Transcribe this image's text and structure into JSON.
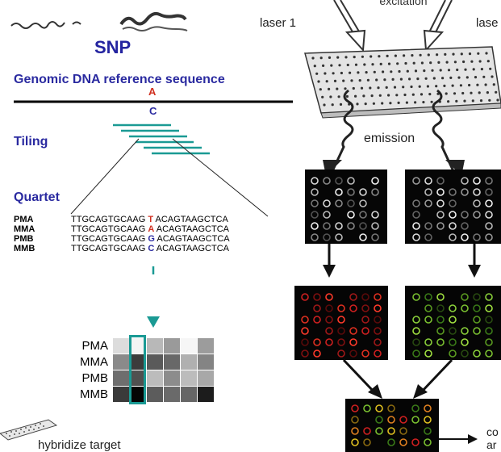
{
  "left": {
    "title": "SNP",
    "reference_label": "Genomic DNA reference sequence",
    "allele_top": "A",
    "allele_bottom": "C",
    "tiling_label": "Tiling",
    "quartet_label": "Quartet",
    "probes": [
      {
        "name": "PMA",
        "prefix": "TTGCAGTGCAAG ",
        "base": "T",
        "suffix": " ACAGTAAGCTCA",
        "base_color": "#d03020"
      },
      {
        "name": "MMA",
        "prefix": "TTGCAGTGCAAG ",
        "base": "A",
        "suffix": " ACAGTAAGCTCA",
        "base_color": "#d03020"
      },
      {
        "name": "PMB",
        "prefix": "TTGCAGTGCAAG ",
        "base": "G",
        "suffix": " ACAGTAAGCTCA",
        "base_color": "#2a2aa0"
      },
      {
        "name": "MMB",
        "prefix": "TTGCAGTGCAAG ",
        "base": "C",
        "suffix": " ACAGTAAGCTCA",
        "base_color": "#2a2aa0"
      }
    ],
    "heatmap_rows": [
      {
        "label": "PMA",
        "cells": [
          "#dcdcdc",
          "#f4f4f4",
          "#b8b8b8",
          "#9a9a9a",
          "#f6f6f6",
          "#9c9c9c"
        ]
      },
      {
        "label": "MMA",
        "cells": [
          "#8a8a8a",
          "#3c3c3c",
          "#5a5a5a",
          "#686868",
          "#b0b0b0",
          "#848484"
        ]
      },
      {
        "label": "PMB",
        "cells": [
          "#6e6e6e",
          "#505050",
          "#bcbcbc",
          "#8c8c8c",
          "#bcbcbc",
          "#a8a8a8"
        ]
      },
      {
        "label": "MMB",
        "cells": [
          "#3a3a3a",
          "#050505",
          "#5c5c5c",
          "#6a6a6a",
          "#666666",
          "#1c1c1c"
        ]
      }
    ],
    "bottom_caption": "hybridize target"
  },
  "right": {
    "laser1": "laser 1",
    "laser2": "lase",
    "excitation": "excitation",
    "emission": "emission",
    "combine_partial_1": "co",
    "combine_partial_2": "ar"
  },
  "colors": {
    "title_blue": "#2424a0",
    "teal": "#1a9a94",
    "red_allele": "#d03020"
  }
}
